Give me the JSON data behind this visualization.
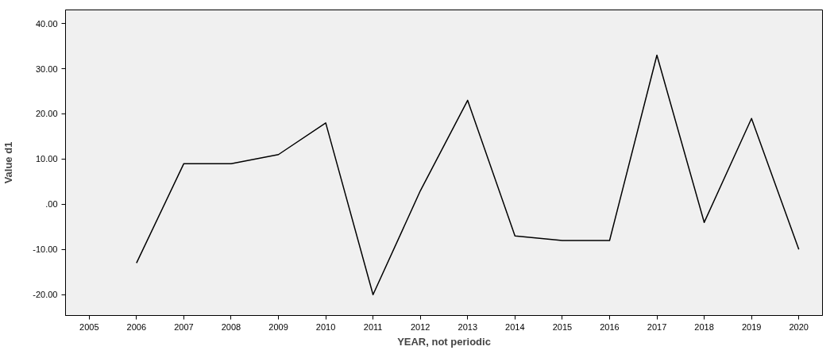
{
  "chart_data": {
    "type": "line",
    "xlabel": "YEAR, not periodic",
    "ylabel": "Value d1",
    "categories": [
      "2005",
      "2006",
      "2007",
      "2008",
      "2009",
      "2010",
      "2011",
      "2012",
      "2013",
      "2014",
      "2015",
      "2016",
      "2017",
      "2018",
      "2019",
      "2020"
    ],
    "series": [
      {
        "color": "#000000",
        "values": [
          null,
          -13,
          9,
          9,
          11,
          18,
          -20,
          3,
          23,
          -7,
          -8,
          -8,
          33,
          -4,
          19,
          -10
        ]
      }
    ],
    "ylim": [
      -24.6,
      43
    ],
    "yticks": [
      {
        "value": -20,
        "label": "-20.00"
      },
      {
        "value": -10,
        "label": "-10.00"
      },
      {
        "value": 0,
        "label": ".00"
      },
      {
        "value": 10,
        "label": "10.00"
      },
      {
        "value": 20,
        "label": "20.00"
      },
      {
        "value": 30,
        "label": "30.00"
      },
      {
        "value": 40,
        "label": "40.00"
      }
    ],
    "grid": false
  }
}
